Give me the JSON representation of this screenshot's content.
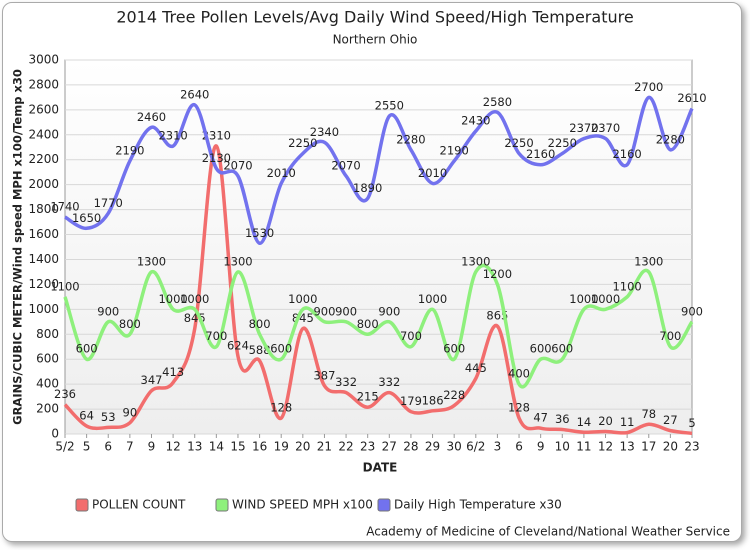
{
  "chart_data": {
    "type": "line",
    "title": "2014 Tree Pollen Levels/Avg Daily Wind Speed/High Temperature",
    "subtitle": "Northern Ohio",
    "x_label": "DATE",
    "y_label": "GRAINS/CUBIC METER/Wind speed MPH x100/Temp x30",
    "source": "Academy of Medicine of Cleveland/National Weather Service",
    "categories": [
      "5/2",
      "5",
      "6",
      "7",
      "9",
      "12",
      "13",
      "14",
      "15",
      "16",
      "19",
      "20",
      "21",
      "22",
      "23",
      "27",
      "28",
      "29",
      "30",
      "6/2",
      "3",
      "6",
      "9",
      "10",
      "11",
      "12",
      "13",
      "17",
      "20",
      "23"
    ],
    "series": [
      {
        "name": "POLLEN COUNT",
        "color": "#f26d6d",
        "values": [
          236,
          64,
          53,
          90,
          347,
          413,
          845,
          2310,
          624,
          588,
          128,
          845,
          387,
          332,
          215,
          332,
          179,
          186,
          228,
          445,
          865,
          128,
          47,
          36,
          14,
          20,
          11,
          78,
          27,
          5
        ]
      },
      {
        "name": "WIND SPEED MPH x100",
        "color": "#8ef07c",
        "values": [
          1100,
          600,
          900,
          800,
          1300,
          1000,
          1000,
          700,
          1300,
          800,
          600,
          1000,
          900,
          900,
          800,
          900,
          700,
          1000,
          600,
          1300,
          1200,
          400,
          600,
          600,
          1000,
          1000,
          1100,
          1300,
          700,
          900
        ]
      },
      {
        "name": "Daily High Temperature x30",
        "color": "#7272ee",
        "values": [
          1740,
          1650,
          1770,
          2190,
          2460,
          2310,
          2640,
          2130,
          2070,
          1530,
          2010,
          2250,
          2340,
          2070,
          1890,
          2550,
          2280,
          2010,
          2190,
          2430,
          2580,
          2250,
          2160,
          2250,
          2370,
          2370,
          2160,
          2700,
          2280,
          2610
        ]
      }
    ],
    "ylim": [
      0,
      3000
    ],
    "yticks": [
      0,
      200,
      400,
      600,
      800,
      1000,
      1200,
      1400,
      1600,
      1800,
      2000,
      2200,
      2400,
      2600,
      2800,
      3000
    ],
    "grid": true,
    "legend": "bottom"
  }
}
